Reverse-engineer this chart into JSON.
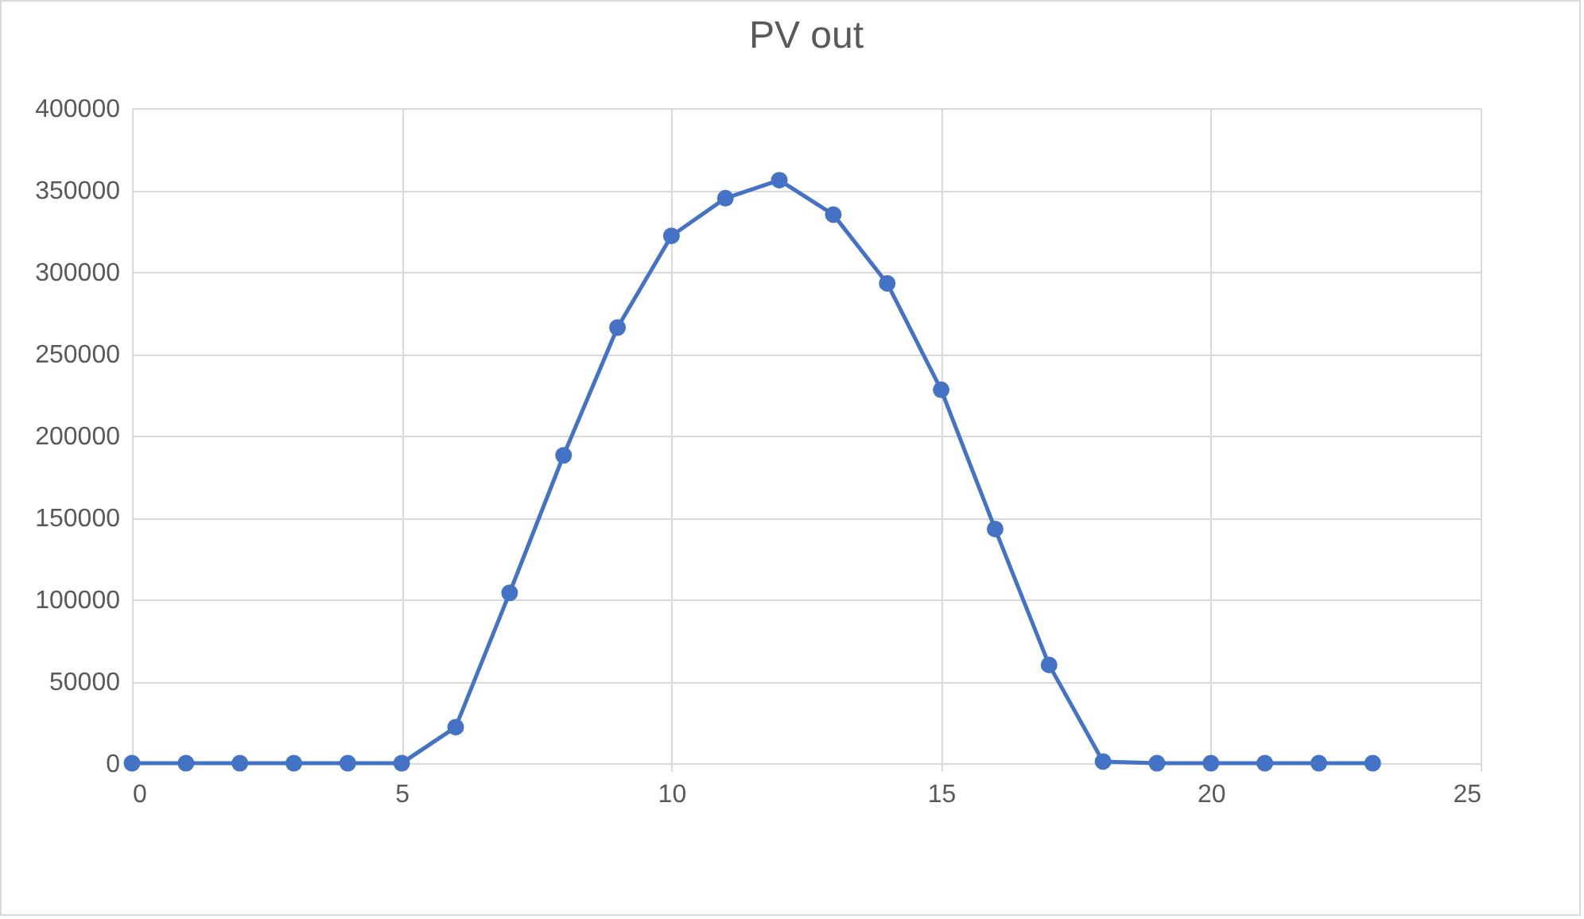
{
  "chart_data": {
    "type": "line",
    "title": "PV out",
    "x": [
      0,
      1,
      2,
      3,
      4,
      5,
      6,
      7,
      8,
      9,
      10,
      11,
      12,
      13,
      14,
      15,
      16,
      17,
      18,
      19,
      20,
      21,
      22,
      23
    ],
    "series": [
      {
        "color": "#4472c4",
        "values": [
          0,
          0,
          0,
          0,
          0,
          0,
          22000,
          104000,
          188000,
          266000,
          322000,
          345000,
          356000,
          335000,
          293000,
          228000,
          143000,
          60000,
          1000,
          0,
          0,
          0,
          0,
          0
        ]
      }
    ],
    "xlim": [
      0,
      25
    ],
    "xticks": [
      0,
      5,
      10,
      15,
      20,
      25
    ],
    "ylim": [
      0,
      400000
    ],
    "yticks": [
      0,
      50000,
      100000,
      150000,
      200000,
      250000,
      300000,
      350000,
      400000
    ],
    "grid": true,
    "marker": "circle",
    "line_style": "solid",
    "legend": false
  }
}
